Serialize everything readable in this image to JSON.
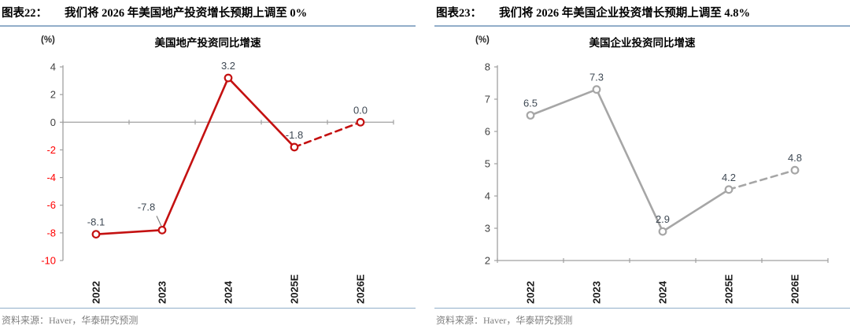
{
  "panels": [
    {
      "fig_label": "图表22：",
      "fig_title": "我们将 2026 年美国地产投资增长预期上调至 0%",
      "unit": "(%)",
      "source": "资料来源：Haver，华泰研究预测"
    },
    {
      "fig_label": "图表23：",
      "fig_title": "我们将 2026 年美国企业投资增长预期上调至 4.8%",
      "unit": "(%)",
      "source": "资料来源：Haver，华泰研究预测"
    }
  ],
  "colors": {
    "header_rule": "#92aec9",
    "source_text": "#7f7f7f",
    "axis": "#a0a0a0",
    "data_label": "#3f4954",
    "x_tick_label": "#1a1a1a"
  },
  "chart_data": [
    {
      "type": "line",
      "title": "美国地产投资同比增速",
      "unit": "(%)",
      "categories": [
        "2022",
        "2023",
        "2024",
        "2025E",
        "2026E"
      ],
      "values": [
        -8.1,
        -7.8,
        3.2,
        -1.8,
        0.0
      ],
      "point_labels": [
        "-8.1",
        "-7.8",
        "3.2",
        "-1.8",
        "0.0"
      ],
      "ylim": [
        -10,
        4
      ],
      "ytick_step": 2,
      "axis_cross_at": 0,
      "dashed_from_index": 3,
      "label_leader_index": 1,
      "line_color": "#c41111",
      "tick_label_color": "#404040",
      "negative_tick_color": "#ff0000",
      "grid": false,
      "legend": "none"
    },
    {
      "type": "line",
      "title": "美国企业投资同比增速",
      "unit": "(%)",
      "categories": [
        "2022",
        "2023",
        "2024",
        "2025E",
        "2026E"
      ],
      "values": [
        6.5,
        7.3,
        2.9,
        4.2,
        4.8
      ],
      "point_labels": [
        "6.5",
        "7.3",
        "2.9",
        "4.2",
        "4.8"
      ],
      "ylim": [
        2,
        8
      ],
      "ytick_step": 1,
      "axis_cross_at": 2,
      "dashed_from_index": 3,
      "label_leader_index": -1,
      "line_color": "#a6a6a6",
      "tick_label_color": "#404040",
      "negative_tick_color": "#ff0000",
      "grid": false,
      "legend": "none"
    }
  ]
}
